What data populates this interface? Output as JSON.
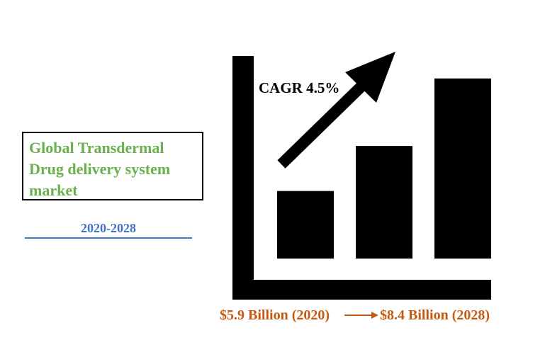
{
  "chart_data": {
    "type": "bar",
    "title": "Global Transdermal Drug delivery system market",
    "period": "2020-2028",
    "annotation": "CAGR 4.5%",
    "start_label": "$5.9 Billion (2020)",
    "end_label": "$8.4 Billion (2028)",
    "values": [
      3,
      5,
      8
    ],
    "ylim": [
      0,
      9
    ],
    "colors": {
      "bars": "#000000",
      "title": "#6ab04c",
      "period": "#4472c4",
      "values": "#c55a11",
      "arrow": "#c55a11"
    }
  }
}
